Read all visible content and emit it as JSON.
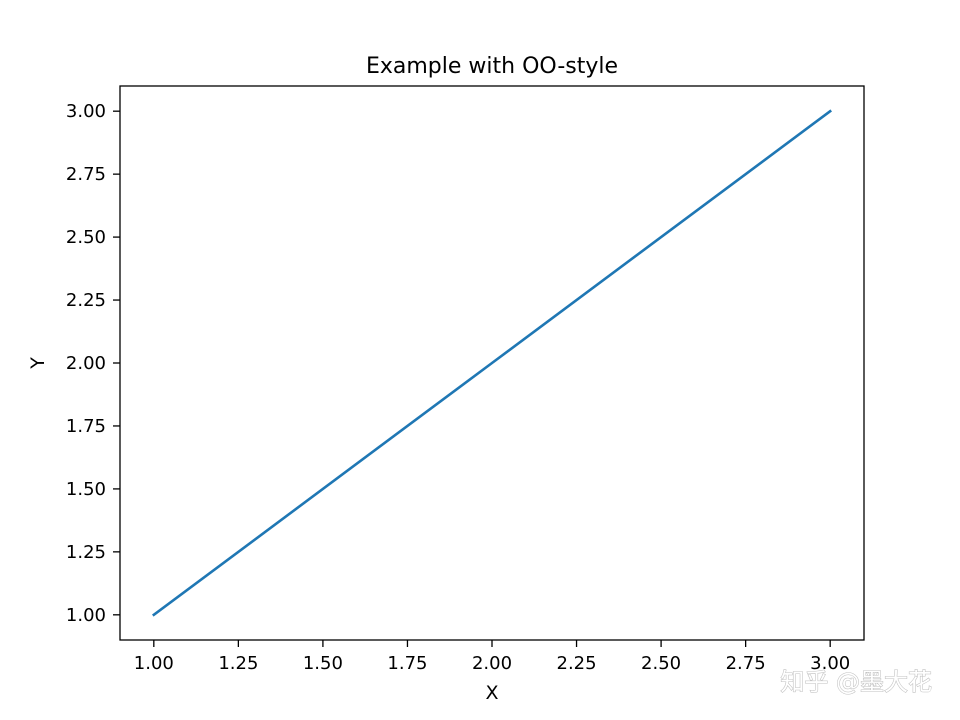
{
  "chart_data": {
    "type": "line",
    "title": "Example with OO-style",
    "xlabel": "X",
    "ylabel": "Y",
    "xlim": [
      0.9,
      3.1
    ],
    "ylim": [
      0.9,
      3.1
    ],
    "xticks": [
      "1.00",
      "1.25",
      "1.50",
      "1.75",
      "2.00",
      "2.25",
      "2.50",
      "2.75",
      "3.00"
    ],
    "yticks": [
      "1.00",
      "1.25",
      "1.50",
      "1.75",
      "2.00",
      "2.25",
      "2.50",
      "2.75",
      "3.00"
    ],
    "grid": false,
    "series": [
      {
        "color": "#1f77b4",
        "x": [
          1,
          2,
          3
        ],
        "y": [
          1,
          2,
          3
        ]
      }
    ]
  },
  "watermark": {
    "text": "知乎 @墨大花"
  }
}
